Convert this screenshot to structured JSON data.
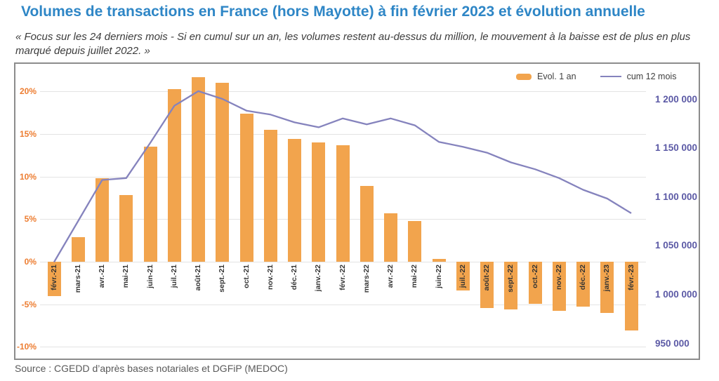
{
  "header": {
    "title": "Volumes de transactions en France (hors Mayotte) à fin février 2023 et évolution annuelle",
    "subtitle": "« Focus sur les 24 derniers mois - Si en cumul sur un an, les volumes restent au-dessus du million, le mouvement à la baisse est de plus en plus marqué depuis juillet 2022. »"
  },
  "source": "Source : CGEDD d’après bases notariales et DGFiP (MEDOC)",
  "legend": {
    "entries": [
      "Evol. 1 an",
      "cum 12 mois"
    ]
  },
  "colors": {
    "title_blue": "#2E86C6",
    "bar_orange": "#F2A44D",
    "line_purple": "#8583BD",
    "left_axis_orange": "#ED7D31",
    "right_axis_purple": "#5B59A5",
    "gridline_gray": "#e3e3e3",
    "panel_border_gray": "#8c8c8c"
  },
  "chart_data": {
    "type": "bar",
    "subtype": "combo-bar-line",
    "grid": true,
    "legend_position": "top-right",
    "categories": [
      "févr.-21",
      "mars-21",
      "avr.-21",
      "mai-21",
      "juin-21",
      "juil.-21",
      "août-21",
      "sept.-21",
      "oct.-21",
      "nov.-21",
      "déc.-21",
      "janv.-22",
      "févr.-22",
      "mars-22",
      "avr.-22",
      "mai-22",
      "juin-22",
      "juil.-22",
      "août-22",
      "sept.-22",
      "oct.-22",
      "nov.-22",
      "déc.-22",
      "janv.-23",
      "févr.-23"
    ],
    "series": [
      {
        "name": "Evol. 1 an",
        "type": "bar",
        "axis": "left",
        "unit": "%",
        "color": "#F2A44D",
        "values": [
          -4.0,
          2.9,
          9.8,
          7.8,
          13.5,
          20.3,
          21.7,
          21.0,
          17.4,
          15.5,
          14.4,
          14.0,
          13.7,
          8.9,
          5.7,
          4.8,
          0.3,
          -3.4,
          -5.4,
          -5.6,
          -4.9,
          -5.8,
          -5.3,
          -6.0,
          -8.1
        ]
      },
      {
        "name": "cum 12 mois",
        "type": "line",
        "axis": "right",
        "unit": "transactions",
        "color": "#8583BD",
        "values": [
          1033000,
          1075000,
          1117000,
          1119000,
          1155000,
          1193000,
          1208000,
          1200000,
          1188000,
          1184000,
          1176000,
          1171000,
          1180000,
          1174000,
          1180000,
          1173000,
          1156000,
          1151000,
          1145000,
          1135000,
          1128000,
          1119000,
          1107000,
          1098000,
          1083000
        ]
      }
    ],
    "left_axis": {
      "ticks": [
        "20%",
        "15%",
        "10%",
        "5%",
        "0%",
        "-5%",
        "-10%"
      ],
      "tick_values": [
        20,
        15,
        10,
        5,
        0,
        -5,
        -10
      ],
      "range": [
        -10,
        20
      ]
    },
    "right_axis": {
      "ticks": [
        "1 200 000",
        "1 150 000",
        "1 100 000",
        "1 050 000",
        "1 000 000",
        "950 000"
      ],
      "tick_values": [
        1200000,
        1150000,
        1100000,
        1050000,
        1000000,
        950000
      ],
      "range": [
        950000,
        1200000
      ]
    }
  }
}
